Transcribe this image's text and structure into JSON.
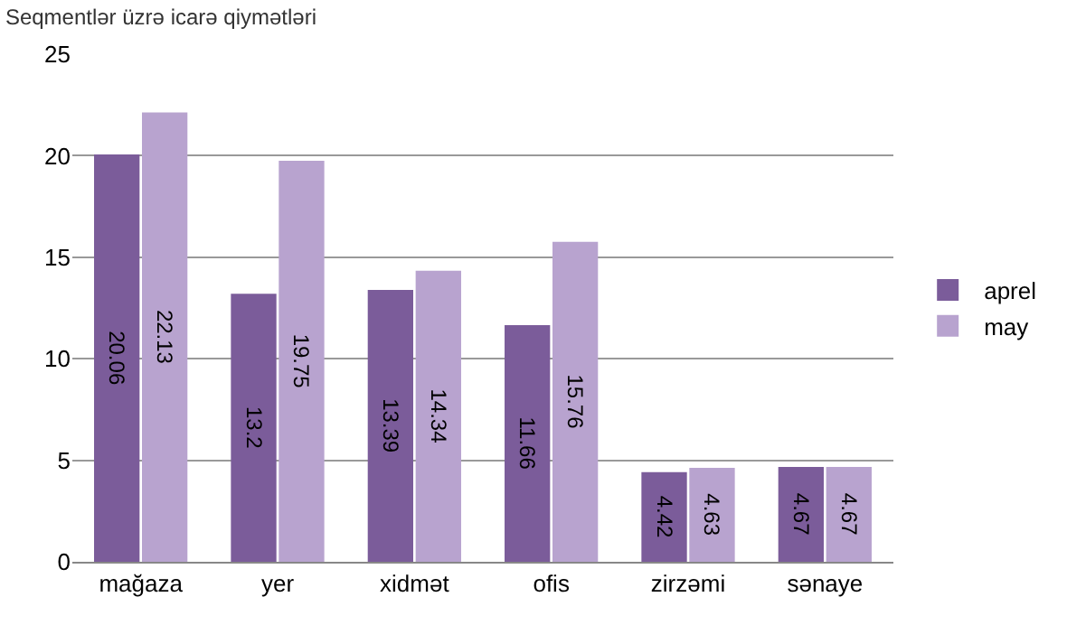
{
  "chart_data": {
    "type": "bar",
    "title": "Seqmentlər üzrə icarə qiymətləri",
    "categories": [
      "mağaza",
      "yer",
      "xidmət",
      "ofis",
      "zirzəmi",
      "sənaye"
    ],
    "series": [
      {
        "name": "aprel",
        "color": "#7b5c9a",
        "values": [
          20.06,
          13.2,
          13.39,
          11.66,
          4.42,
          4.67
        ]
      },
      {
        "name": "may",
        "color": "#b8a3cf",
        "values": [
          22.13,
          19.75,
          14.34,
          15.76,
          4.63,
          4.67
        ]
      }
    ],
    "ylim": [
      0,
      25
    ],
    "yticks": [
      0,
      5,
      10,
      15,
      20,
      25
    ],
    "grid": "y",
    "legend": "right",
    "data_labels": true
  }
}
